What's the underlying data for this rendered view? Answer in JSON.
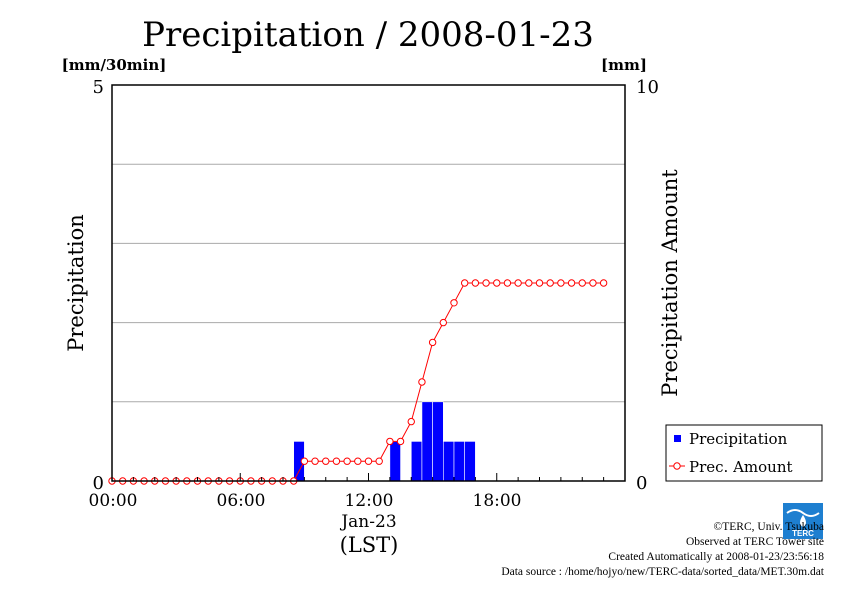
{
  "chart_data": {
    "type": "bar",
    "title": "Precipitation / 2008-01-23",
    "left_unit": "[mm/30min]",
    "right_unit": "[mm]",
    "ylabel": "Precipitation",
    "y2label": "Precipitation Amount",
    "ylim": [
      0,
      5
    ],
    "y2lim": [
      0,
      10
    ],
    "xlim": [
      0,
      24
    ],
    "left_tick_labels": [
      "0",
      "5"
    ],
    "right_tick_labels": [
      "0",
      "10"
    ],
    "x_tick_labels": [
      "00:00",
      "06:00",
      "12:00",
      "18:00"
    ],
    "date_label": "Jan-23",
    "timezone_label": "(LST)",
    "grid": true,
    "legend_position": "bottom-right",
    "series": [
      {
        "name": "Precipitation",
        "kind": "bar",
        "color": "#0000ff",
        "x": [
          "08:30",
          "13:00",
          "14:00",
          "14:30",
          "15:00",
          "15:30",
          "16:00",
          "16:30"
        ],
        "values": [
          0.5,
          0.5,
          0.5,
          1.0,
          1.0,
          0.5,
          0.5,
          0.5
        ]
      },
      {
        "name": "Prec. Amount",
        "kind": "line",
        "color": "#ff0000",
        "x": [
          "00:00",
          "00:30",
          "01:00",
          "01:30",
          "02:00",
          "02:30",
          "03:00",
          "03:30",
          "04:00",
          "04:30",
          "05:00",
          "05:30",
          "06:00",
          "06:30",
          "07:00",
          "07:30",
          "08:00",
          "08:30",
          "09:00",
          "09:30",
          "10:00",
          "10:30",
          "11:00",
          "11:30",
          "12:00",
          "12:30",
          "13:00",
          "13:30",
          "14:00",
          "14:30",
          "15:00",
          "15:30",
          "16:00",
          "16:30",
          "17:00",
          "17:30",
          "18:00",
          "18:30",
          "19:00",
          "19:30",
          "20:00",
          "20:30",
          "21:00",
          "21:30",
          "22:00",
          "22:30",
          "23:00"
        ],
        "values": [
          0,
          0,
          0,
          0,
          0,
          0,
          0,
          0,
          0,
          0,
          0,
          0,
          0,
          0,
          0,
          0,
          0,
          0,
          0.5,
          0.5,
          0.5,
          0.5,
          0.5,
          0.5,
          0.5,
          0.5,
          1.0,
          1.0,
          1.5,
          2.5,
          3.5,
          4.0,
          4.5,
          5.0,
          5.0,
          5.0,
          5.0,
          5.0,
          5.0,
          5.0,
          5.0,
          5.0,
          5.0,
          5.0,
          5.0,
          5.0,
          5.0
        ]
      }
    ]
  },
  "credits": {
    "copyright": "©TERC, Univ. Tsukuba",
    "observed": "Observed at TERC Tower site",
    "created": "Created Automatically at 2008-01-23/23:56:18",
    "source": "Data source : /home/hojyo/new/TERC-data/sorted_data/MET.30m.dat"
  },
  "logo_text": "TERC",
  "colors": {
    "bar": "#0000ff",
    "line": "#ff0000",
    "grid": "#aaaaaa"
  }
}
